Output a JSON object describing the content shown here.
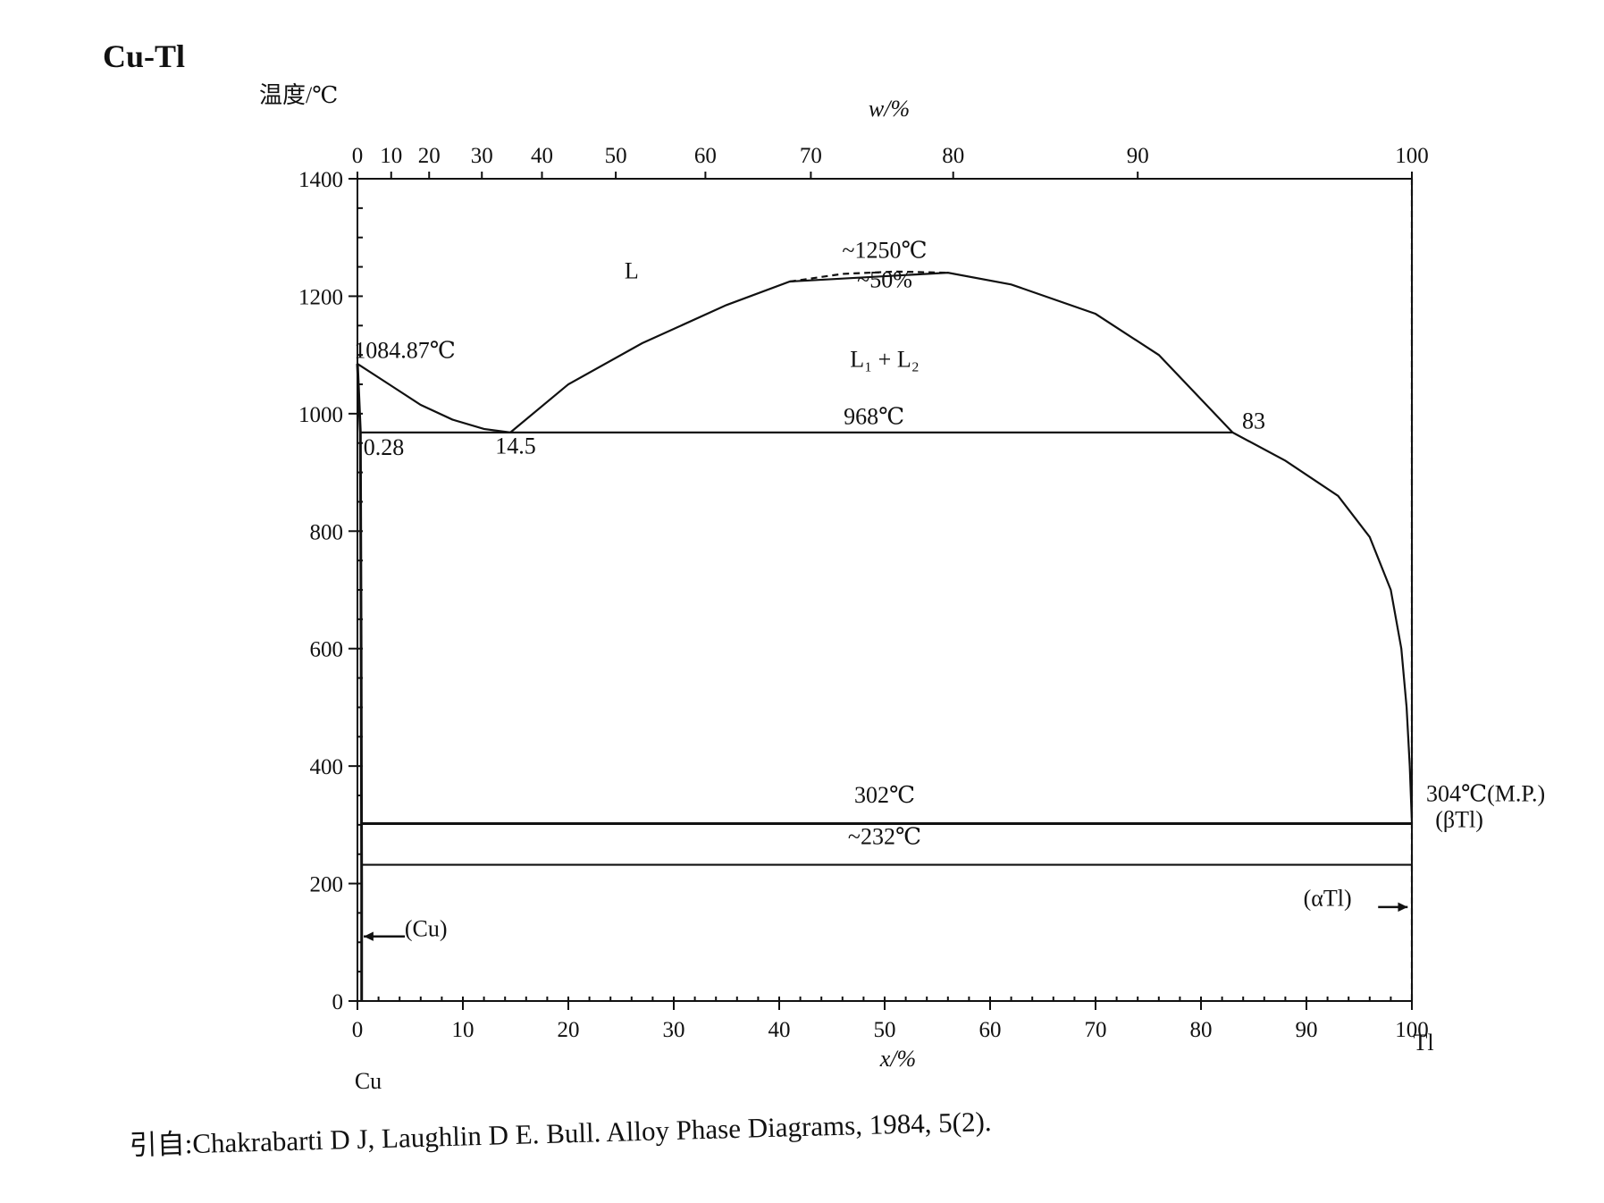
{
  "chart_data": {
    "type": "line",
    "title": "Cu-Tl",
    "ylabel": "温度/℃",
    "xlabel": "x/%",
    "x2label": "w/%",
    "ylim": [
      0,
      1400
    ],
    "xlim": [
      0,
      100
    ],
    "yticks": [
      0,
      200,
      400,
      600,
      800,
      1000,
      1200,
      1400
    ],
    "xticks": [
      0,
      10,
      20,
      30,
      40,
      50,
      60,
      70,
      80,
      90,
      100
    ],
    "wticks": [
      0,
      10,
      20,
      30,
      40,
      50,
      60,
      70,
      80,
      90,
      100
    ],
    "left_element": "Cu",
    "right_element": "Tl",
    "series": [
      {
        "kind": "liquidus-cu",
        "points": [
          [
            0,
            1084.87
          ],
          [
            3,
            1050
          ],
          [
            6,
            1015
          ],
          [
            9,
            990
          ],
          [
            12,
            974
          ],
          [
            14.5,
            968
          ]
        ]
      },
      {
        "kind": "miscibility-gap",
        "points": [
          [
            14.5,
            968
          ],
          [
            20,
            1050
          ],
          [
            27,
            1120
          ],
          [
            35,
            1185
          ],
          [
            41,
            1225
          ],
          [
            56,
            1240
          ],
          [
            62,
            1220
          ],
          [
            70,
            1170
          ],
          [
            76,
            1100
          ],
          [
            83,
            968
          ]
        ]
      },
      {
        "kind": "liquidus-tl",
        "points": [
          [
            83,
            968
          ],
          [
            88,
            920
          ],
          [
            93,
            860
          ],
          [
            96,
            790
          ],
          [
            98,
            700
          ],
          [
            99,
            600
          ],
          [
            99.5,
            500
          ],
          [
            99.8,
            400
          ],
          [
            100,
            304
          ]
        ]
      },
      {
        "kind": "monotectic",
        "points": [
          [
            0.28,
            968
          ],
          [
            83,
            968
          ]
        ]
      },
      {
        "kind": "eutectic",
        "points": [
          [
            0.5,
            302
          ],
          [
            100,
            302
          ]
        ]
      },
      {
        "kind": "eutectoid",
        "points": [
          [
            0.5,
            232
          ],
          [
            100,
            232
          ]
        ]
      },
      {
        "kind": "cu-solvus",
        "points": [
          [
            0,
            1084.87
          ],
          [
            0.28,
            968
          ],
          [
            0.35,
            600
          ],
          [
            0.4,
            200
          ],
          [
            0.4,
            0
          ]
        ]
      }
    ],
    "annotations": [
      {
        "text": "L",
        "x": 26,
        "y": 1230
      },
      {
        "text": "~1250℃",
        "x": 50,
        "y": 1265
      },
      {
        "text": "~50%",
        "x": 50,
        "y": 1215
      },
      {
        "text": "L₁ + L₂",
        "x": 50,
        "y": 1080
      },
      {
        "text": "1084.87℃",
        "x": 4.5,
        "y": 1095
      },
      {
        "text": "968℃",
        "x": 49,
        "y": 982
      },
      {
        "text": "0.28",
        "x": 2.5,
        "y": 930
      },
      {
        "text": "14.5",
        "x": 15,
        "y": 932
      },
      {
        "text": "83",
        "x": 85,
        "y": 975
      },
      {
        "text": "302℃",
        "x": 50,
        "y": 338
      },
      {
        "text": "~232℃",
        "x": 50,
        "y": 267
      },
      {
        "text": "304℃(M.P.)",
        "x": 107,
        "y": 340
      },
      {
        "text": "(βTl)",
        "x": 104.5,
        "y": 296
      },
      {
        "text": "(αTl)",
        "x": 92,
        "y": 162
      },
      {
        "text": "(Cu)",
        "x": 6.5,
        "y": 110
      }
    ]
  },
  "citation": "引自:Chakrabarti D J, Laughlin D E. Bull.  Alloy Phase Diagrams, 1984, 5(2)."
}
